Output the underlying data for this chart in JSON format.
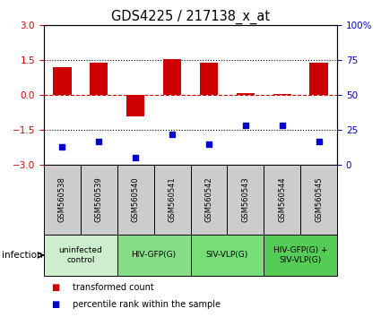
{
  "title": "GDS4225 / 217138_x_at",
  "samples": [
    "GSM560538",
    "GSM560539",
    "GSM560540",
    "GSM560541",
    "GSM560542",
    "GSM560543",
    "GSM560544",
    "GSM560545"
  ],
  "bar_values": [
    1.2,
    1.4,
    -0.9,
    1.55,
    1.4,
    0.1,
    0.05,
    1.4
  ],
  "percentile_values": [
    13,
    17,
    5,
    22,
    15,
    28,
    28,
    17
  ],
  "ylim_left": [
    -3,
    3
  ],
  "ylim_right": [
    0,
    100
  ],
  "yticks_left": [
    -3,
    -1.5,
    0,
    1.5,
    3
  ],
  "yticks_right": [
    0,
    25,
    50,
    75,
    100
  ],
  "bar_color": "#cc0000",
  "percentile_color": "#0000cc",
  "hline_color": "#cc0000",
  "dotted_line_color": "#000000",
  "groups": [
    {
      "label": "uninfected\ncontrol",
      "start": 0,
      "end": 2,
      "color": "#cceecc"
    },
    {
      "label": "HIV-GFP(G)",
      "start": 2,
      "end": 4,
      "color": "#88dd88"
    },
    {
      "label": "SIV-VLP(G)",
      "start": 4,
      "end": 6,
      "color": "#77dd77"
    },
    {
      "label": "HIV-GFP(G) +\nSIV-VLP(G)",
      "start": 6,
      "end": 8,
      "color": "#55cc55"
    }
  ],
  "infection_label": "infection",
  "legend_bar_label": "transformed count",
  "legend_dot_label": "percentile rank within the sample",
  "background_color": "#ffffff",
  "plot_bg_color": "#ffffff",
  "tick_label_color_left": "#cc0000",
  "tick_label_color_right": "#0000cc",
  "bar_width": 0.5,
  "sample_box_color": "#cccccc",
  "sample_box_border": "#000000"
}
